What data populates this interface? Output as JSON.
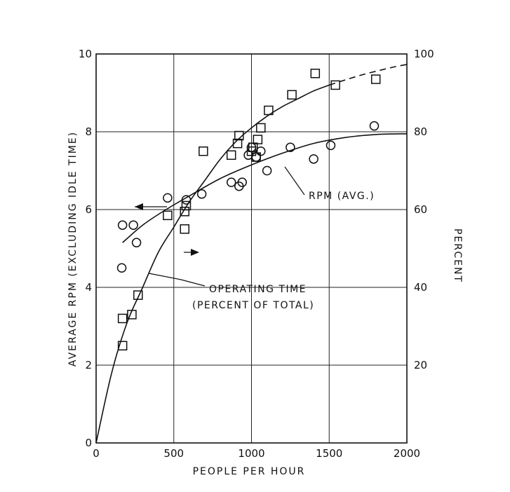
{
  "chart_data": {
    "type": "scatter",
    "x_axis": {
      "label": "PEOPLE PER HOUR",
      "range": [
        0,
        2000
      ],
      "ticks": [
        0,
        500,
        1000,
        1500,
        2000
      ],
      "tick_labels": [
        "0",
        "500",
        "1000",
        "1500",
        "2000"
      ]
    },
    "y_axis_left": {
      "label": "AVERAGE RPM (EXCLUDING IDLE TIME)",
      "range": [
        0,
        10
      ],
      "ticks": [
        0,
        2,
        4,
        6,
        8,
        10
      ],
      "tick_labels": [
        "0",
        "2",
        "4",
        "6",
        "8",
        "10"
      ]
    },
    "y_axis_right": {
      "label": "PERCENT",
      "range": [
        0,
        100
      ],
      "ticks": [
        20,
        40,
        60,
        80,
        100
      ],
      "tick_labels": [
        "20",
        "40",
        "60",
        "80",
        "100"
      ]
    },
    "grid": true,
    "series": [
      {
        "name": "RPM (AVG.)",
        "marker": "circle",
        "axis": "left",
        "points": [
          [
            170,
            5.6
          ],
          [
            240,
            5.6
          ],
          [
            260,
            5.15
          ],
          [
            165,
            4.5
          ],
          [
            460,
            6.3
          ],
          [
            580,
            6.25
          ],
          [
            680,
            6.4
          ],
          [
            870,
            6.7
          ],
          [
            920,
            6.6
          ],
          [
            940,
            6.7
          ],
          [
            980,
            7.4
          ],
          [
            1000,
            7.6
          ],
          [
            1030,
            7.35
          ],
          [
            1060,
            7.5
          ],
          [
            1100,
            7.0
          ],
          [
            1250,
            7.6
          ],
          [
            1400,
            7.3
          ],
          [
            1510,
            7.65
          ],
          [
            1790,
            8.15
          ]
        ],
        "fit_curve": [
          [
            170,
            5.15
          ],
          [
            300,
            5.6
          ],
          [
            450,
            6.0
          ],
          [
            600,
            6.35
          ],
          [
            800,
            6.8
          ],
          [
            1000,
            7.15
          ],
          [
            1200,
            7.45
          ],
          [
            1400,
            7.7
          ],
          [
            1600,
            7.85
          ],
          [
            1800,
            7.93
          ],
          [
            2000,
            7.95
          ]
        ]
      },
      {
        "name": "OPERATING TIME (PERCENT OF TOTAL)",
        "marker": "square",
        "axis": "right",
        "points": [
          [
            170,
            32
          ],
          [
            170,
            25
          ],
          [
            230,
            33
          ],
          [
            270,
            38
          ],
          [
            460,
            58.5
          ],
          [
            570,
            55
          ],
          [
            570,
            59.5
          ],
          [
            580,
            61
          ],
          [
            690,
            75
          ],
          [
            870,
            74
          ],
          [
            910,
            77
          ],
          [
            920,
            79
          ],
          [
            1000,
            75
          ],
          [
            1010,
            76
          ],
          [
            1030,
            73.5
          ],
          [
            1040,
            78
          ],
          [
            1060,
            81
          ],
          [
            1110,
            85.5
          ],
          [
            1260,
            89.5
          ],
          [
            1410,
            95
          ],
          [
            1540,
            92
          ],
          [
            1800,
            93.5
          ]
        ],
        "fit_curve": [
          [
            0,
            0
          ],
          [
            100,
            18
          ],
          [
            200,
            31
          ],
          [
            300,
            40
          ],
          [
            400,
            49
          ],
          [
            500,
            55.5
          ],
          [
            600,
            62
          ],
          [
            700,
            67.5
          ],
          [
            800,
            73
          ],
          [
            900,
            77.5
          ],
          [
            1000,
            81
          ],
          [
            1100,
            84
          ],
          [
            1200,
            86.5
          ],
          [
            1300,
            88.5
          ],
          [
            1400,
            90.5
          ],
          [
            1500,
            92
          ]
        ],
        "extrapolation_curve": [
          [
            1500,
            92
          ],
          [
            1700,
            94.5
          ],
          [
            1900,
            96.5
          ],
          [
            2000,
            97.3
          ]
        ]
      }
    ],
    "annotations": {
      "rpm_label": "RPM (AVG.)",
      "operating_time_line1": "OPERATING TIME",
      "operating_time_line2": "(PERCENT OF TOTAL)"
    }
  }
}
